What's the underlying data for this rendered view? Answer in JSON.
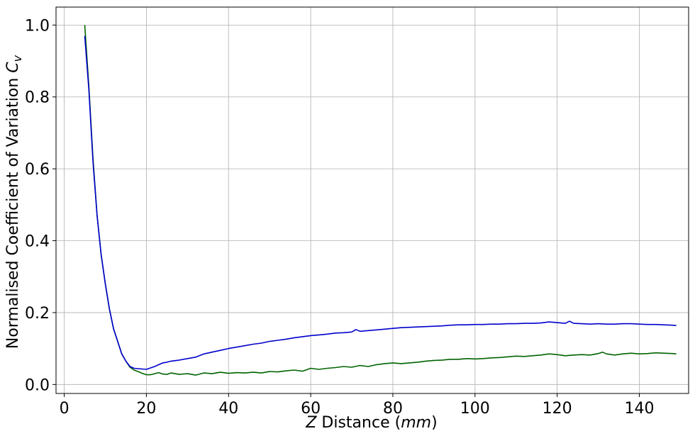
{
  "chart_data": {
    "type": "line",
    "xlabel": {
      "var": "Z",
      "text": " Distance (",
      "unit": "mm",
      "close": ")"
    },
    "ylabel": {
      "text": "Normalised Coefficient of Variation ",
      "var": "C",
      "sub": "v"
    },
    "xlim": [
      -2,
      152
    ],
    "ylim": [
      -0.025,
      1.05
    ],
    "xticks": [
      0,
      20,
      40,
      60,
      80,
      100,
      120,
      140
    ],
    "xtick_labels": [
      "0",
      "20",
      "40",
      "60",
      "80",
      "100",
      "120",
      "140"
    ],
    "yticks": [
      0.0,
      0.2,
      0.4,
      0.6,
      0.8,
      1.0
    ],
    "ytick_labels": [
      "0.0",
      "0.2",
      "0.4",
      "0.6",
      "0.8",
      "1.0"
    ],
    "grid": true,
    "series": [
      {
        "color": "#006400",
        "points": [
          [
            5,
            1.0
          ],
          [
            6,
            0.83
          ],
          [
            7,
            0.63
          ],
          [
            8,
            0.47
          ],
          [
            9,
            0.36
          ],
          [
            10,
            0.28
          ],
          [
            11,
            0.21
          ],
          [
            12,
            0.155
          ],
          [
            13,
            0.12
          ],
          [
            14,
            0.085
          ],
          [
            15,
            0.065
          ],
          [
            16,
            0.048
          ],
          [
            17,
            0.04
          ],
          [
            18,
            0.036
          ],
          [
            19,
            0.031
          ],
          [
            20,
            0.027
          ],
          [
            21,
            0.027
          ],
          [
            22,
            0.03
          ],
          [
            23,
            0.033
          ],
          [
            24,
            0.029
          ],
          [
            25,
            0.028
          ],
          [
            26,
            0.032
          ],
          [
            27,
            0.03
          ],
          [
            28,
            0.028
          ],
          [
            30,
            0.03
          ],
          [
            32,
            0.026
          ],
          [
            34,
            0.032
          ],
          [
            36,
            0.03
          ],
          [
            38,
            0.034
          ],
          [
            40,
            0.031
          ],
          [
            42,
            0.033
          ],
          [
            44,
            0.032
          ],
          [
            46,
            0.034
          ],
          [
            48,
            0.032
          ],
          [
            50,
            0.036
          ],
          [
            52,
            0.035
          ],
          [
            54,
            0.038
          ],
          [
            56,
            0.04
          ],
          [
            58,
            0.037
          ],
          [
            60,
            0.045
          ],
          [
            62,
            0.042
          ],
          [
            64,
            0.045
          ],
          [
            66,
            0.047
          ],
          [
            68,
            0.05
          ],
          [
            70,
            0.048
          ],
          [
            72,
            0.053
          ],
          [
            74,
            0.05
          ],
          [
            76,
            0.055
          ],
          [
            78,
            0.058
          ],
          [
            80,
            0.06
          ],
          [
            82,
            0.058
          ],
          [
            84,
            0.06
          ],
          [
            86,
            0.062
          ],
          [
            88,
            0.065
          ],
          [
            90,
            0.067
          ],
          [
            92,
            0.068
          ],
          [
            94,
            0.07
          ],
          [
            96,
            0.07
          ],
          [
            98,
            0.072
          ],
          [
            100,
            0.071
          ],
          [
            102,
            0.072
          ],
          [
            104,
            0.074
          ],
          [
            106,
            0.075
          ],
          [
            108,
            0.077
          ],
          [
            110,
            0.079
          ],
          [
            112,
            0.078
          ],
          [
            114,
            0.08
          ],
          [
            116,
            0.082
          ],
          [
            118,
            0.085
          ],
          [
            120,
            0.083
          ],
          [
            122,
            0.08
          ],
          [
            124,
            0.082
          ],
          [
            126,
            0.083
          ],
          [
            128,
            0.082
          ],
          [
            130,
            0.086
          ],
          [
            131,
            0.09
          ],
          [
            132,
            0.085
          ],
          [
            134,
            0.082
          ],
          [
            136,
            0.085
          ],
          [
            138,
            0.087
          ],
          [
            140,
            0.085
          ],
          [
            142,
            0.086
          ],
          [
            144,
            0.088
          ],
          [
            146,
            0.087
          ],
          [
            148,
            0.086
          ],
          [
            149,
            0.085
          ]
        ]
      },
      {
        "color": "#0000cd",
        "points": [
          [
            5,
            0.97
          ],
          [
            6,
            0.82
          ],
          [
            7,
            0.62
          ],
          [
            8,
            0.47
          ],
          [
            9,
            0.36
          ],
          [
            10,
            0.28
          ],
          [
            11,
            0.21
          ],
          [
            12,
            0.155
          ],
          [
            13,
            0.12
          ],
          [
            14,
            0.085
          ],
          [
            15,
            0.065
          ],
          [
            16,
            0.05
          ],
          [
            17,
            0.045
          ],
          [
            18,
            0.044
          ],
          [
            19,
            0.043
          ],
          [
            20,
            0.042
          ],
          [
            21,
            0.046
          ],
          [
            22,
            0.05
          ],
          [
            23,
            0.055
          ],
          [
            24,
            0.06
          ],
          [
            25,
            0.062
          ],
          [
            26,
            0.065
          ],
          [
            28,
            0.068
          ],
          [
            30,
            0.072
          ],
          [
            32,
            0.076
          ],
          [
            34,
            0.085
          ],
          [
            36,
            0.09
          ],
          [
            38,
            0.095
          ],
          [
            40,
            0.1
          ],
          [
            42,
            0.104
          ],
          [
            44,
            0.108
          ],
          [
            46,
            0.112
          ],
          [
            48,
            0.115
          ],
          [
            50,
            0.12
          ],
          [
            52,
            0.123
          ],
          [
            54,
            0.126
          ],
          [
            56,
            0.13
          ],
          [
            58,
            0.133
          ],
          [
            60,
            0.136
          ],
          [
            62,
            0.138
          ],
          [
            64,
            0.14
          ],
          [
            66,
            0.143
          ],
          [
            68,
            0.144
          ],
          [
            70,
            0.146
          ],
          [
            71,
            0.153
          ],
          [
            72,
            0.148
          ],
          [
            74,
            0.15
          ],
          [
            76,
            0.152
          ],
          [
            78,
            0.154
          ],
          [
            80,
            0.156
          ],
          [
            82,
            0.158
          ],
          [
            84,
            0.159
          ],
          [
            86,
            0.16
          ],
          [
            88,
            0.161
          ],
          [
            90,
            0.162
          ],
          [
            92,
            0.163
          ],
          [
            94,
            0.165
          ],
          [
            96,
            0.166
          ],
          [
            98,
            0.166
          ],
          [
            100,
            0.167
          ],
          [
            102,
            0.167
          ],
          [
            104,
            0.168
          ],
          [
            106,
            0.168
          ],
          [
            108,
            0.169
          ],
          [
            110,
            0.169
          ],
          [
            112,
            0.17
          ],
          [
            114,
            0.17
          ],
          [
            116,
            0.171
          ],
          [
            118,
            0.174
          ],
          [
            120,
            0.172
          ],
          [
            122,
            0.17
          ],
          [
            123,
            0.176
          ],
          [
            124,
            0.17
          ],
          [
            126,
            0.169
          ],
          [
            128,
            0.168
          ],
          [
            130,
            0.169
          ],
          [
            132,
            0.168
          ],
          [
            134,
            0.168
          ],
          [
            136,
            0.169
          ],
          [
            138,
            0.169
          ],
          [
            140,
            0.168
          ],
          [
            142,
            0.167
          ],
          [
            144,
            0.167
          ],
          [
            146,
            0.166
          ],
          [
            148,
            0.165
          ],
          [
            149,
            0.164
          ]
        ]
      }
    ]
  }
}
